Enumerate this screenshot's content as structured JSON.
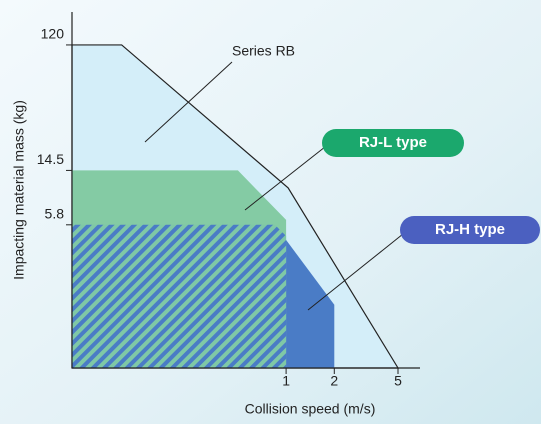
{
  "chart_data": {
    "type": "region",
    "x_label": "Collision speed (m/s)",
    "y_label": "Impacting material mass (kg)",
    "log_x": true,
    "log_y": true,
    "xlim": [
      0.046,
      6.86
    ],
    "ylim": [
      0.52,
      209
    ],
    "xticks": [
      1,
      2,
      5
    ],
    "yticks": [
      120,
      14.5,
      5.8
    ],
    "series": [
      {
        "name": "Series RB",
        "color": "#d4eef9",
        "x": [
          0.046,
          0.094,
          1.03,
          5,
          0.046
        ],
        "y": [
          120,
          120,
          10.8,
          0.52,
          0.52
        ]
      },
      {
        "name": "RJ-H type",
        "color": "#4a7cc6",
        "x": [
          0.046,
          0.85,
          2,
          2,
          0.046
        ],
        "y": [
          5.8,
          5.8,
          1.51,
          0.52,
          0.52
        ]
      },
      {
        "name": "RJ-L type",
        "color": "#84cba4",
        "x": [
          0.046,
          0.5,
          1,
          1,
          0.046
        ],
        "y": [
          14.5,
          14.5,
          6.3,
          0.52,
          0.52
        ]
      }
    ],
    "overlap": {
      "x": [
        0.046,
        0.85,
        1,
        1,
        0.046
      ],
      "y": [
        5.8,
        5.8,
        4.8,
        0.52,
        0.52
      ]
    }
  }
}
